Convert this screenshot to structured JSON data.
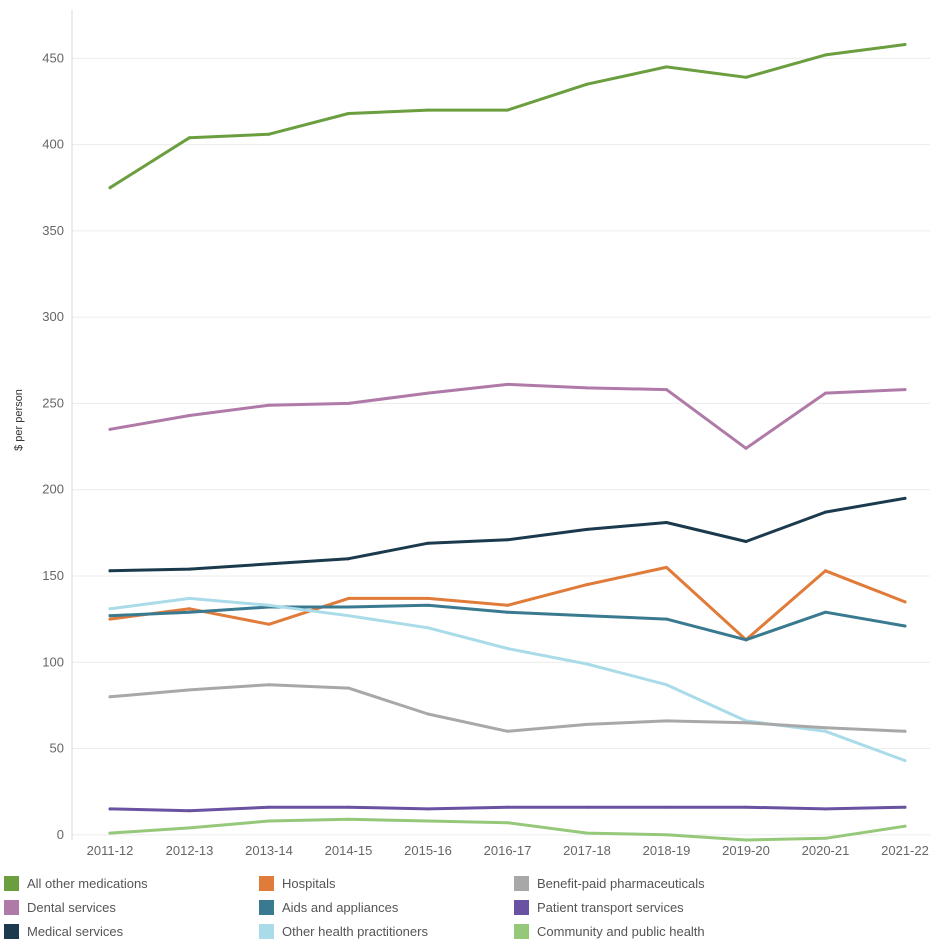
{
  "chart_data": {
    "type": "line",
    "ylabel": "$ per person",
    "xlabel": "",
    "ylim": [
      -3,
      478
    ],
    "yticks": [
      0,
      50,
      100,
      150,
      200,
      250,
      300,
      350,
      400,
      450
    ],
    "grid": "horizontal",
    "legend_position": "bottom",
    "categories": [
      "2011-12",
      "2012-13",
      "2013-14",
      "2014-15",
      "2015-16",
      "2016-17",
      "2017-18",
      "2018-19",
      "2019-20",
      "2020-21",
      "2021-22"
    ],
    "series": [
      {
        "name": "All other medications",
        "color": "#6a9e3f",
        "values": [
          375,
          404,
          406,
          418,
          420,
          420,
          435,
          445,
          439,
          452,
          458
        ]
      },
      {
        "name": "Dental services",
        "color": "#b07aa8",
        "values": [
          235,
          243,
          249,
          250,
          256,
          261,
          259,
          258,
          224,
          256,
          258
        ]
      },
      {
        "name": "Medical services",
        "color": "#1c3a4d",
        "values": [
          153,
          154,
          157,
          160,
          169,
          171,
          177,
          181,
          170,
          187,
          195
        ]
      },
      {
        "name": "Hospitals",
        "color": "#e07b3a",
        "values": [
          125,
          131,
          122,
          137,
          137,
          133,
          145,
          155,
          113,
          153,
          135
        ]
      },
      {
        "name": "Aids and appliances",
        "color": "#3a7a91",
        "values": [
          127,
          129,
          132,
          132,
          133,
          129,
          127,
          125,
          113,
          129,
          121
        ]
      },
      {
        "name": "Other health practitioners",
        "color": "#a9dbe8",
        "values": [
          131,
          137,
          133,
          127,
          120,
          108,
          99,
          87,
          66,
          60,
          43
        ]
      },
      {
        "name": "Benefit-paid pharmaceuticals",
        "color": "#a8a8a8",
        "values": [
          80,
          84,
          87,
          85,
          70,
          60,
          64,
          66,
          65,
          62,
          60
        ]
      },
      {
        "name": "Patient transport services",
        "color": "#6a52a3",
        "values": [
          15,
          14,
          16,
          16,
          15,
          16,
          16,
          16,
          16,
          15,
          16
        ]
      },
      {
        "name": "Community and public health",
        "color": "#96c87a",
        "values": [
          1,
          4,
          8,
          9,
          8,
          7,
          1,
          0,
          -3,
          -2,
          5
        ]
      }
    ]
  },
  "legend": {
    "items": [
      {
        "label": "All other medications",
        "color": "#6a9e3f"
      },
      {
        "label": "Hospitals",
        "color": "#e07b3a"
      },
      {
        "label": "Benefit-paid pharmaceuticals",
        "color": "#a8a8a8"
      },
      {
        "label": "Dental services",
        "color": "#b07aa8"
      },
      {
        "label": "Aids and appliances",
        "color": "#3a7a91"
      },
      {
        "label": "Patient transport services",
        "color": "#6a52a3"
      },
      {
        "label": "Medical services",
        "color": "#1c3a4d"
      },
      {
        "label": "Other health practitioners",
        "color": "#a9dbe8"
      },
      {
        "label": "Community and public health",
        "color": "#96c87a"
      }
    ]
  }
}
